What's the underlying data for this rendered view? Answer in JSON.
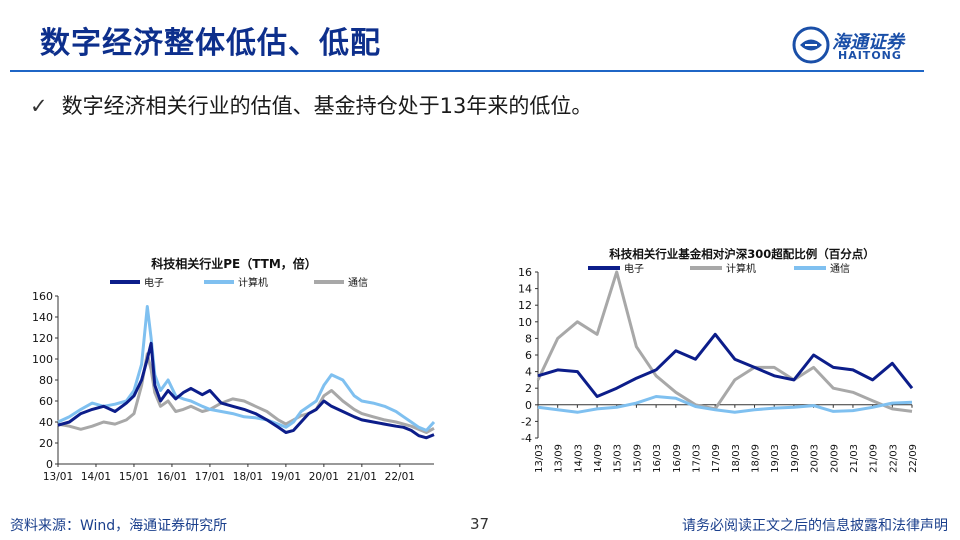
{
  "page": {
    "title": "数字经济整体低估、低配",
    "bullet": "数字经济相关行业的估值、基金持仓处于13年来的低位。",
    "check_glyph": "✓",
    "logo_cn": "海通证券",
    "logo_en": "HAITONG",
    "footer_left": "资料来源：Wind，海通证券研究所",
    "page_number": "37",
    "footer_right": "请务必阅读正文之后的信息披露和法律声明"
  },
  "colors": {
    "title": "#0d2f8c",
    "rule": "#1f66c6",
    "electronics": "#0c1d8a",
    "computer": "#7fc0f0",
    "telecom": "#a8a8a8"
  },
  "chart_data": [
    {
      "type": "line",
      "title": "科技相关行业PE（TTM，倍）",
      "xlabel": "",
      "ylabel": "",
      "ylim": [
        0,
        160
      ],
      "yticks": [
        0,
        20,
        40,
        60,
        80,
        100,
        120,
        140,
        160
      ],
      "xticks": [
        "13/01",
        "14/01",
        "15/01",
        "16/01",
        "17/01",
        "18/01",
        "19/01",
        "20/01",
        "21/01",
        "22/01"
      ],
      "xrange": [
        2013.0,
        2022.9
      ],
      "legend": "top",
      "series": [
        {
          "name": "电子",
          "color": "#0c1d8a",
          "x": [
            2013.0,
            2013.3,
            2013.6,
            2013.9,
            2014.2,
            2014.5,
            2014.8,
            2015.0,
            2015.2,
            2015.35,
            2015.45,
            2015.55,
            2015.7,
            2015.9,
            2016.1,
            2016.3,
            2016.5,
            2016.8,
            2017.0,
            2017.3,
            2017.6,
            2017.9,
            2018.2,
            2018.5,
            2018.8,
            2019.0,
            2019.2,
            2019.4,
            2019.6,
            2019.8,
            2020.0,
            2020.2,
            2020.5,
            2020.8,
            2021.0,
            2021.3,
            2021.6,
            2021.9,
            2022.1,
            2022.3,
            2022.5,
            2022.7,
            2022.9
          ],
          "y": [
            37,
            40,
            48,
            52,
            55,
            50,
            58,
            65,
            80,
            100,
            115,
            75,
            60,
            70,
            62,
            68,
            72,
            66,
            70,
            58,
            55,
            52,
            48,
            42,
            35,
            30,
            32,
            40,
            48,
            52,
            60,
            55,
            50,
            45,
            42,
            40,
            38,
            36,
            35,
            32,
            27,
            25,
            28
          ]
        },
        {
          "name": "计算机",
          "color": "#7fc0f0",
          "x": [
            2013.0,
            2013.3,
            2013.6,
            2013.9,
            2014.2,
            2014.5,
            2014.8,
            2015.0,
            2015.2,
            2015.35,
            2015.45,
            2015.55,
            2015.7,
            2015.9,
            2016.1,
            2016.3,
            2016.5,
            2016.8,
            2017.0,
            2017.3,
            2017.6,
            2017.9,
            2018.2,
            2018.5,
            2018.8,
            2019.0,
            2019.2,
            2019.4,
            2019.6,
            2019.8,
            2020.0,
            2020.2,
            2020.5,
            2020.8,
            2021.0,
            2021.3,
            2021.6,
            2021.9,
            2022.1,
            2022.3,
            2022.5,
            2022.7,
            2022.9
          ],
          "y": [
            40,
            45,
            52,
            58,
            55,
            57,
            60,
            70,
            95,
            150,
            120,
            85,
            70,
            80,
            65,
            62,
            60,
            55,
            52,
            50,
            48,
            45,
            44,
            42,
            38,
            35,
            40,
            50,
            55,
            60,
            75,
            85,
            80,
            65,
            60,
            58,
            55,
            50,
            45,
            40,
            35,
            32,
            40
          ]
        },
        {
          "name": "通信",
          "color": "#a8a8a8",
          "x": [
            2013.0,
            2013.3,
            2013.6,
            2013.9,
            2014.2,
            2014.5,
            2014.8,
            2015.0,
            2015.2,
            2015.35,
            2015.45,
            2015.55,
            2015.7,
            2015.9,
            2016.1,
            2016.3,
            2016.5,
            2016.8,
            2017.0,
            2017.3,
            2017.6,
            2017.9,
            2018.2,
            2018.5,
            2018.8,
            2019.0,
            2019.2,
            2019.4,
            2019.6,
            2019.8,
            2020.0,
            2020.2,
            2020.5,
            2020.8,
            2021.0,
            2021.3,
            2021.6,
            2021.9,
            2022.1,
            2022.3,
            2022.5,
            2022.7,
            2022.9
          ],
          "y": [
            38,
            36,
            33,
            36,
            40,
            38,
            42,
            48,
            75,
            105,
            90,
            68,
            55,
            60,
            50,
            52,
            55,
            50,
            52,
            58,
            62,
            60,
            55,
            50,
            42,
            38,
            42,
            46,
            48,
            52,
            65,
            70,
            60,
            52,
            48,
            45,
            42,
            40,
            38,
            36,
            33,
            30,
            34
          ]
        }
      ]
    },
    {
      "type": "line",
      "title": "科技相关行业基金相对沪深300超配比例（百分点）",
      "xlabel": "",
      "ylabel": "",
      "ylim": [
        -4,
        16
      ],
      "yticks": [
        -4,
        -2,
        0,
        2,
        4,
        6,
        8,
        10,
        12,
        14,
        16
      ],
      "categories": [
        "13/03",
        "13/09",
        "14/03",
        "14/09",
        "15/03",
        "15/09",
        "16/03",
        "16/09",
        "17/03",
        "17/09",
        "18/03",
        "18/09",
        "19/03",
        "19/09",
        "20/03",
        "20/09",
        "21/03",
        "21/09",
        "22/03",
        "22/09"
      ],
      "legend": "top",
      "series": [
        {
          "name": "电子",
          "color": "#0c1d8a",
          "values": [
            3.5,
            4.2,
            4.0,
            1.0,
            2.0,
            3.2,
            4.2,
            6.5,
            5.5,
            8.5,
            5.5,
            4.5,
            3.5,
            3.0,
            6.0,
            4.5,
            4.2,
            3.0,
            5.0,
            2.0
          ]
        },
        {
          "name": "计算机",
          "color": "#a8a8a8",
          "values": [
            3.0,
            8.0,
            10.0,
            8.5,
            16.0,
            7.0,
            3.5,
            1.5,
            0.0,
            -0.5,
            3.0,
            4.5,
            4.5,
            3.0,
            4.5,
            2.0,
            1.5,
            0.5,
            -0.5,
            -0.8
          ]
        },
        {
          "name": "通信",
          "color": "#7fc0f0",
          "values": [
            -0.3,
            -0.6,
            -0.9,
            -0.5,
            -0.3,
            0.2,
            1.0,
            0.8,
            -0.2,
            -0.6,
            -0.9,
            -0.6,
            -0.4,
            -0.3,
            -0.1,
            -0.8,
            -0.7,
            -0.3,
            0.2,
            0.3
          ]
        }
      ]
    }
  ]
}
